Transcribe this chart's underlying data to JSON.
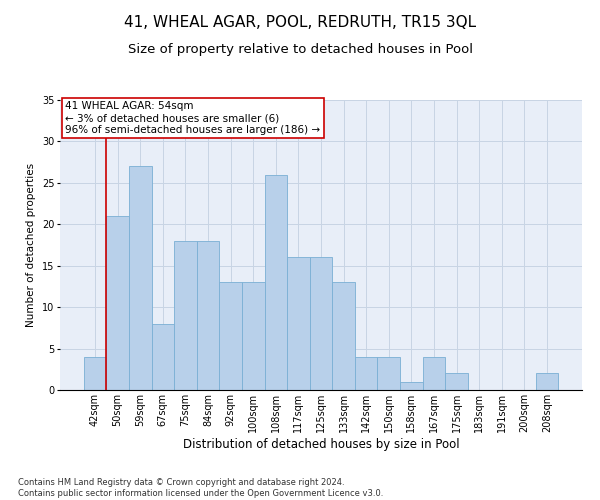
{
  "title1": "41, WHEAL AGAR, POOL, REDRUTH, TR15 3QL",
  "title2": "Size of property relative to detached houses in Pool",
  "xlabel": "Distribution of detached houses by size in Pool",
  "ylabel": "Number of detached properties",
  "categories": [
    "42sqm",
    "50sqm",
    "59sqm",
    "67sqm",
    "75sqm",
    "84sqm",
    "92sqm",
    "100sqm",
    "108sqm",
    "117sqm",
    "125sqm",
    "133sqm",
    "142sqm",
    "150sqm",
    "158sqm",
    "167sqm",
    "175sqm",
    "183sqm",
    "191sqm",
    "200sqm",
    "208sqm"
  ],
  "values": [
    4,
    21,
    27,
    8,
    18,
    18,
    13,
    13,
    26,
    16,
    16,
    13,
    4,
    4,
    1,
    4,
    2,
    0,
    0,
    0,
    2
  ],
  "bar_color": "#b8d0ea",
  "bar_edge_color": "#7aafd4",
  "grid_color": "#c8d4e4",
  "bg_color": "#e8eef8",
  "vline_color": "#cc0000",
  "annotation_text": "41 WHEAL AGAR: 54sqm\n← 3% of detached houses are smaller (6)\n96% of semi-detached houses are larger (186) →",
  "annotation_box_color": "#ffffff",
  "annotation_box_edge": "#cc0000",
  "ylim": [
    0,
    35
  ],
  "yticks": [
    0,
    5,
    10,
    15,
    20,
    25,
    30,
    35
  ],
  "footnote": "Contains HM Land Registry data © Crown copyright and database right 2024.\nContains public sector information licensed under the Open Government Licence v3.0.",
  "title1_fontsize": 11,
  "title2_fontsize": 9.5,
  "xlabel_fontsize": 8.5,
  "ylabel_fontsize": 7.5,
  "tick_fontsize": 7,
  "annotation_fontsize": 7.5,
  "footnote_fontsize": 6
}
